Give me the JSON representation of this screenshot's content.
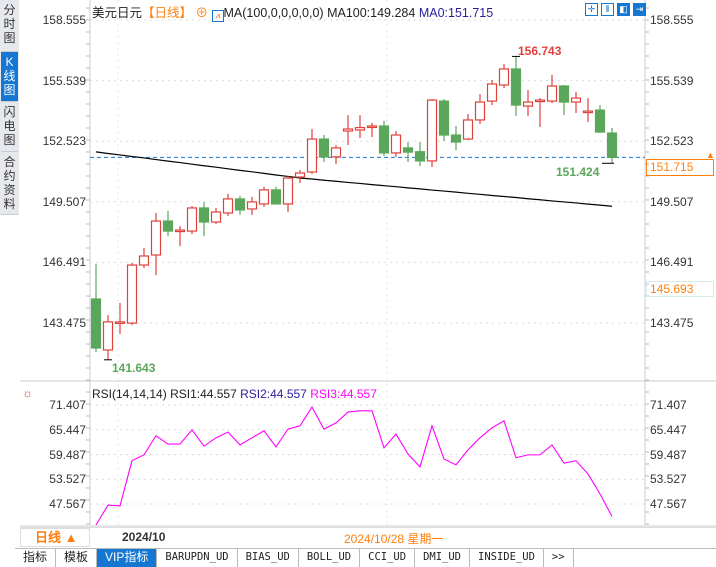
{
  "sidebar": {
    "tabs": [
      {
        "label": "分时图"
      },
      {
        "label": "K线图",
        "active": true
      },
      {
        "label": "闪电图"
      },
      {
        "label": "合约资料"
      }
    ]
  },
  "header": {
    "symbol": "美元日元",
    "period": "【日线】",
    "ma_label": "MA(100,0,0,0,0,0)",
    "ma100": "MA100:149.284",
    "ma0": "MA0:151.715",
    "tools": [
      {
        "icon": "crosshair-icon",
        "glyph": "✛"
      },
      {
        "icon": "zoom-range-icon",
        "glyph": "⫴"
      },
      {
        "icon": "scroll-left-icon",
        "glyph": "◧"
      },
      {
        "icon": "scroll-right-icon",
        "glyph": "⇥"
      }
    ]
  },
  "price_axis": {
    "labels": [
      "158.555",
      "155.539",
      "152.523",
      "149.507",
      "146.491",
      "143.475"
    ],
    "current": "151.715",
    "cursor_price": "145.693"
  },
  "annotations": {
    "high": "156.743",
    "low": "141.643",
    "recent_low": "151.424"
  },
  "rsi": {
    "title": "RSI(14,14,14)",
    "rsi1": "RSI1:44.557",
    "rsi2": "RSI2:44.557",
    "rsi3": "RSI3:44.557",
    "axis": [
      "71.407",
      "65.447",
      "59.487",
      "53.527",
      "47.567"
    ]
  },
  "datebar": {
    "period": "日线",
    "month": "2024/10",
    "cursor_date": "2024/10/28 星期一"
  },
  "bottom_tabs": [
    {
      "label": "指标"
    },
    {
      "label": "模板"
    },
    {
      "label": "VIP指标",
      "active": true
    },
    {
      "label": "BARUPDN_UD"
    },
    {
      "label": "BIAS_UD"
    },
    {
      "label": "BOLL_UD"
    },
    {
      "label": "CCI_UD"
    },
    {
      "label": "DMI_UD"
    },
    {
      "label": "INSIDE_UD"
    },
    {
      "label": ">>"
    }
  ],
  "colors": {
    "up": "#e0413b",
    "down": "#5aa65a",
    "ma": "#000000",
    "rsi": "#ff00ff",
    "accent": "#1677d2",
    "orange": "#ff7f0e"
  },
  "chart_data": {
    "type": "candlestick",
    "ylim": [
      141.0,
      159.0
    ],
    "ohlc": [
      [
        144.67,
        146.42,
        142.03,
        142.23
      ],
      [
        142.13,
        143.87,
        141.643,
        143.53
      ],
      [
        143.53,
        144.47,
        142.93,
        143.53
      ],
      [
        143.47,
        146.46,
        143.37,
        146.36
      ],
      [
        146.36,
        147.21,
        146.21,
        146.81
      ],
      [
        146.86,
        148.95,
        145.86,
        148.55
      ],
      [
        148.55,
        149.05,
        147.8,
        148.05
      ],
      [
        148.05,
        148.3,
        147.3,
        148.1
      ],
      [
        148.05,
        149.3,
        147.9,
        149.2
      ],
      [
        149.2,
        149.5,
        147.8,
        148.5
      ],
      [
        148.5,
        149.2,
        148.4,
        149.0
      ],
      [
        148.95,
        149.9,
        148.8,
        149.65
      ],
      [
        149.65,
        149.8,
        148.85,
        149.1
      ],
      [
        149.15,
        149.75,
        148.85,
        149.5
      ],
      [
        149.4,
        150.25,
        149.25,
        150.1
      ],
      [
        150.1,
        150.25,
        149.4,
        149.4
      ],
      [
        149.4,
        150.79,
        149.0,
        150.69
      ],
      [
        150.74,
        151.09,
        150.44,
        150.94
      ],
      [
        150.99,
        153.13,
        150.89,
        152.63
      ],
      [
        152.63,
        152.83,
        151.49,
        151.74
      ],
      [
        151.74,
        152.33,
        151.39,
        152.19
      ],
      [
        153.03,
        153.82,
        152.33,
        153.13
      ],
      [
        153.08,
        153.82,
        152.68,
        153.2
      ],
      [
        153.28,
        153.43,
        152.73,
        153.28
      ],
      [
        153.28,
        153.53,
        151.79,
        151.94
      ],
      [
        151.94,
        153.03,
        151.74,
        152.83
      ],
      [
        152.19,
        152.48,
        151.49,
        151.98
      ],
      [
        152.0,
        152.48,
        151.29,
        151.54
      ],
      [
        151.54,
        154.62,
        151.24,
        154.57
      ],
      [
        154.52,
        154.62,
        152.53,
        152.83
      ],
      [
        152.83,
        153.28,
        152.08,
        152.48
      ],
      [
        152.63,
        153.88,
        152.58,
        153.58
      ],
      [
        153.58,
        154.87,
        153.38,
        154.47
      ],
      [
        154.52,
        155.57,
        154.32,
        155.37
      ],
      [
        155.32,
        156.37,
        155.17,
        156.12
      ],
      [
        156.12,
        156.743,
        153.78,
        154.32
      ],
      [
        154.27,
        155.07,
        153.78,
        154.47
      ],
      [
        154.52,
        154.67,
        153.23,
        154.57
      ],
      [
        154.52,
        155.82,
        154.42,
        155.27
      ],
      [
        155.27,
        155.32,
        153.83,
        154.47
      ],
      [
        154.47,
        154.97,
        153.93,
        154.67
      ],
      [
        154.02,
        154.67,
        153.48,
        154.02
      ],
      [
        154.07,
        154.32,
        152.93,
        152.98
      ],
      [
        152.93,
        153.18,
        151.424,
        151.715
      ]
    ],
    "ma100": [
      151.99,
      151.91,
      151.84,
      151.76,
      151.69,
      151.61,
      151.53,
      151.46,
      151.38,
      151.3,
      151.23,
      151.15,
      151.07,
      151.0,
      150.92,
      150.84,
      150.77,
      150.69,
      150.64,
      150.58,
      150.53,
      150.47,
      150.42,
      150.36,
      150.31,
      150.26,
      150.2,
      150.15,
      150.09,
      150.04,
      149.99,
      149.93,
      149.88,
      149.82,
      149.77,
      149.72,
      149.66,
      149.61,
      149.55,
      149.5,
      149.45,
      149.39,
      149.34,
      149.284
    ],
    "rsi": [
      42.5,
      47.3,
      47.1,
      58.0,
      59.4,
      64.0,
      62.0,
      62.0,
      65.4,
      61.5,
      63.5,
      64.9,
      61.8,
      63.5,
      65.2,
      61.3,
      65.6,
      66.4,
      70.9,
      65.6,
      67.1,
      69.7,
      70.0,
      70.0,
      61.1,
      64.4,
      59.6,
      56.5,
      66.4,
      58.4,
      57.0,
      60.6,
      63.5,
      65.9,
      67.6,
      58.7,
      59.4,
      59.4,
      61.8,
      57.4,
      58.0,
      54.8,
      50.0,
      44.557
    ],
    "rsi_ylim": [
      42.0,
      73.0
    ]
  }
}
